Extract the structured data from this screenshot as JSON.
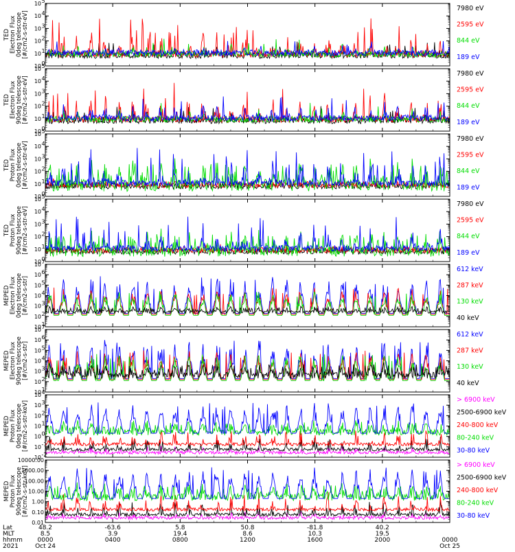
{
  "chart_data": {
    "type": "line",
    "x_axis": {
      "label_rows": [
        {
          "name": "Lat",
          "values": [
            "48.2",
            "-63.6",
            "5.8",
            "50.8",
            "-81.8",
            "40.2"
          ]
        },
        {
          "name": "MLT",
          "values": [
            "8.5",
            "3.9",
            "19.4",
            "8.6",
            "10.3",
            "19.5"
          ]
        },
        {
          "name": "hhmm",
          "values": [
            "0000",
            "0400",
            "0800",
            "1200",
            "1600",
            "2000",
            "0000"
          ]
        },
        {
          "name": "2021",
          "values": [
            "Oct 24",
            "",
            "",
            "",
            "",
            "",
            "Oct 25"
          ]
        }
      ],
      "time_range_hours": [
        0,
        24
      ],
      "major_tick_hours": [
        0,
        4,
        8,
        12,
        16,
        20,
        24
      ]
    },
    "panels": [
      {
        "ylabel_lines": [
          "TED",
          "Electron Flux",
          "0deg telescope",
          "[#/cm2-s-str-eV]"
        ],
        "scale": "log",
        "ylim_exp": [
          0,
          5
        ],
        "tick_format": "pow",
        "series": [
          {
            "name": "7980 eV",
            "color": "#000000",
            "base": 0.6,
            "peak": 2.0,
            "spikes": 0.55,
            "style": "spiky"
          },
          {
            "name": "2595 eV",
            "color": "#ff0000",
            "base": 0.7,
            "peak": 3.8,
            "spikes": 0.6,
            "style": "spiky"
          },
          {
            "name": "844 eV",
            "color": "#00dd00",
            "base": 0.7,
            "peak": 2.3,
            "spikes": 0.2,
            "style": "spiky"
          },
          {
            "name": "189 eV",
            "color": "#0000ff",
            "base": 0.8,
            "peak": 2.0,
            "spikes": 0.25,
            "style": "spiky"
          }
        ]
      },
      {
        "ylabel_lines": [
          "TED",
          "Electron Flux",
          "90deg telescope",
          "[#/cm2-s-str-eV]"
        ],
        "scale": "log",
        "ylim_exp": [
          0,
          5
        ],
        "tick_format": "pow",
        "series": [
          {
            "name": "7980 eV",
            "color": "#000000",
            "base": 0.6,
            "peak": 2.0,
            "spikes": 0.5,
            "style": "spiky"
          },
          {
            "name": "2595 eV",
            "color": "#ff0000",
            "base": 0.7,
            "peak": 3.9,
            "spikes": 0.6,
            "style": "spiky"
          },
          {
            "name": "844 eV",
            "color": "#00dd00",
            "base": 0.7,
            "peak": 2.3,
            "spikes": 0.2,
            "style": "spiky"
          },
          {
            "name": "189 eV",
            "color": "#0000ff",
            "base": 0.8,
            "peak": 2.9,
            "spikes": 0.35,
            "style": "spiky"
          }
        ]
      },
      {
        "ylabel_lines": [
          "TED",
          "Proton Flux",
          "0deg telescope",
          "[#/cm2-s-str-eV]"
        ],
        "scale": "log",
        "ylim_exp": [
          0,
          5
        ],
        "tick_format": "pow",
        "series": [
          {
            "name": "7980 eV",
            "color": "#000000",
            "base": 0.6,
            "peak": 1.4,
            "spikes": 0.2,
            "style": "spiky"
          },
          {
            "name": "2595 eV",
            "color": "#ff0000",
            "base": 0.7,
            "peak": 1.5,
            "spikes": 0.2,
            "style": "spiky"
          },
          {
            "name": "844 eV",
            "color": "#00dd00",
            "base": 0.4,
            "peak": 3.2,
            "spikes": 0.85,
            "style": "dense"
          },
          {
            "name": "189 eV",
            "color": "#0000ff",
            "base": 0.8,
            "peak": 3.9,
            "spikes": 0.6,
            "style": "spiky"
          }
        ]
      },
      {
        "ylabel_lines": [
          "TED",
          "Proton Flux",
          "90deg telescope",
          "[#/cm2-s-str-eV]"
        ],
        "scale": "log",
        "ylim_exp": [
          0,
          5
        ],
        "tick_format": "pow",
        "series": [
          {
            "name": "7980 eV",
            "color": "#000000",
            "base": 0.6,
            "peak": 1.3,
            "spikes": 0.2,
            "style": "spiky"
          },
          {
            "name": "2595 eV",
            "color": "#ff0000",
            "base": 0.7,
            "peak": 1.4,
            "spikes": 0.2,
            "style": "spiky"
          },
          {
            "name": "844 eV",
            "color": "#00dd00",
            "base": 0.4,
            "peak": 2.7,
            "spikes": 0.85,
            "style": "dense"
          },
          {
            "name": "189 eV",
            "color": "#0000ff",
            "base": 0.8,
            "peak": 3.6,
            "spikes": 0.55,
            "style": "spiky"
          }
        ]
      },
      {
        "ylabel_lines": [
          "MEPED",
          "Electron Flux",
          "0deg telescope",
          "[#/cm2-s-str]"
        ],
        "scale": "log",
        "ylim_exp": [
          1,
          7
        ],
        "tick_format": "pow",
        "series": [
          {
            "name": "612 keV",
            "color": "#0000ff",
            "base": 2.3,
            "peak": 5.9,
            "spikes": 0.45,
            "style": "humps"
          },
          {
            "name": "287 keV",
            "color": "#ff0000",
            "base": 2.2,
            "peak": 4.8,
            "spikes": 0.3,
            "style": "humps"
          },
          {
            "name": "130 keV",
            "color": "#00dd00",
            "base": 2.1,
            "peak": 4.5,
            "spikes": 0.3,
            "style": "humps"
          },
          {
            "name": "40 keV",
            "color": "#000000",
            "base": 2.3,
            "peak": 3.0,
            "spikes": 0.9,
            "style": "dense"
          }
        ]
      },
      {
        "ylabel_lines": [
          "MEPED",
          "Electron Flux",
          "90deg telescope",
          "[#/cm2-s-str]"
        ],
        "scale": "log",
        "ylim_exp": [
          1,
          7
        ],
        "tick_format": "pow",
        "series": [
          {
            "name": "612 keV",
            "color": "#0000ff",
            "base": 2.3,
            "peak": 6.0,
            "spikes": 0.7,
            "style": "humps"
          },
          {
            "name": "287 keV",
            "color": "#ff0000",
            "base": 2.2,
            "peak": 5.0,
            "spikes": 0.7,
            "style": "humps"
          },
          {
            "name": "130 keV",
            "color": "#00dd00",
            "base": 2.1,
            "peak": 4.7,
            "spikes": 0.6,
            "style": "humps"
          },
          {
            "name": "40 keV",
            "color": "#000000",
            "base": 2.3,
            "peak": 4.0,
            "spikes": 0.9,
            "style": "dense"
          }
        ]
      },
      {
        "ylabel_lines": [
          "MEPED",
          "Proton Flux",
          "0deg telescope",
          "[#/cm2-s-str-keV]"
        ],
        "scale": "log",
        "ylim_exp": [
          -2,
          4
        ],
        "tick_format": "pow",
        "series": [
          {
            "name": "> 6900 keV",
            "color": "#ff00ff",
            "base": -1.7,
            "peak": -0.9,
            "spikes": 0.15,
            "style": "sparse"
          },
          {
            "name": "2500-6900 keV",
            "color": "#000000",
            "base": -1.4,
            "peak": 0.2,
            "spikes": 0.2,
            "style": "sparse"
          },
          {
            "name": "240-800 keV",
            "color": "#ff0000",
            "base": -0.9,
            "peak": 0.8,
            "spikes": 0.25,
            "style": "sparse"
          },
          {
            "name": "80-240 keV",
            "color": "#00dd00",
            "base": 0.1,
            "peak": 1.8,
            "spikes": 0.5,
            "style": "dense"
          },
          {
            "name": "30-80 keV",
            "color": "#0000ff",
            "base": 0.3,
            "peak": 3.3,
            "spikes": 0.45,
            "style": "humps"
          }
        ]
      },
      {
        "ylabel_lines": [
          "MEPED",
          "Proton Flux",
          "90deg telescope",
          "[#/cm2-s-str-keV]"
        ],
        "scale": "log",
        "ylim_exp": [
          -2,
          4
        ],
        "tick_format": "dec",
        "tick_labels": [
          "10000.00",
          "1000.00",
          "100.00",
          "10.00",
          "1.00",
          "0.10",
          "0.01"
        ],
        "series": [
          {
            "name": "> 6900 keV",
            "color": "#ff00ff",
            "base": -1.7,
            "peak": -0.9,
            "spikes": 0.15,
            "style": "sparse"
          },
          {
            "name": "2500-6900 keV",
            "color": "#000000",
            "base": -1.4,
            "peak": 0.3,
            "spikes": 0.2,
            "style": "sparse"
          },
          {
            "name": "240-800 keV",
            "color": "#ff0000",
            "base": -0.9,
            "peak": 1.0,
            "spikes": 0.25,
            "style": "sparse"
          },
          {
            "name": "80-240 keV",
            "color": "#00dd00",
            "base": 0.1,
            "peak": 2.0,
            "spikes": 0.5,
            "style": "dense"
          },
          {
            "name": "30-80 keV",
            "color": "#0000ff",
            "base": 0.3,
            "peak": 3.3,
            "spikes": 0.45,
            "style": "humps"
          }
        ]
      }
    ]
  }
}
